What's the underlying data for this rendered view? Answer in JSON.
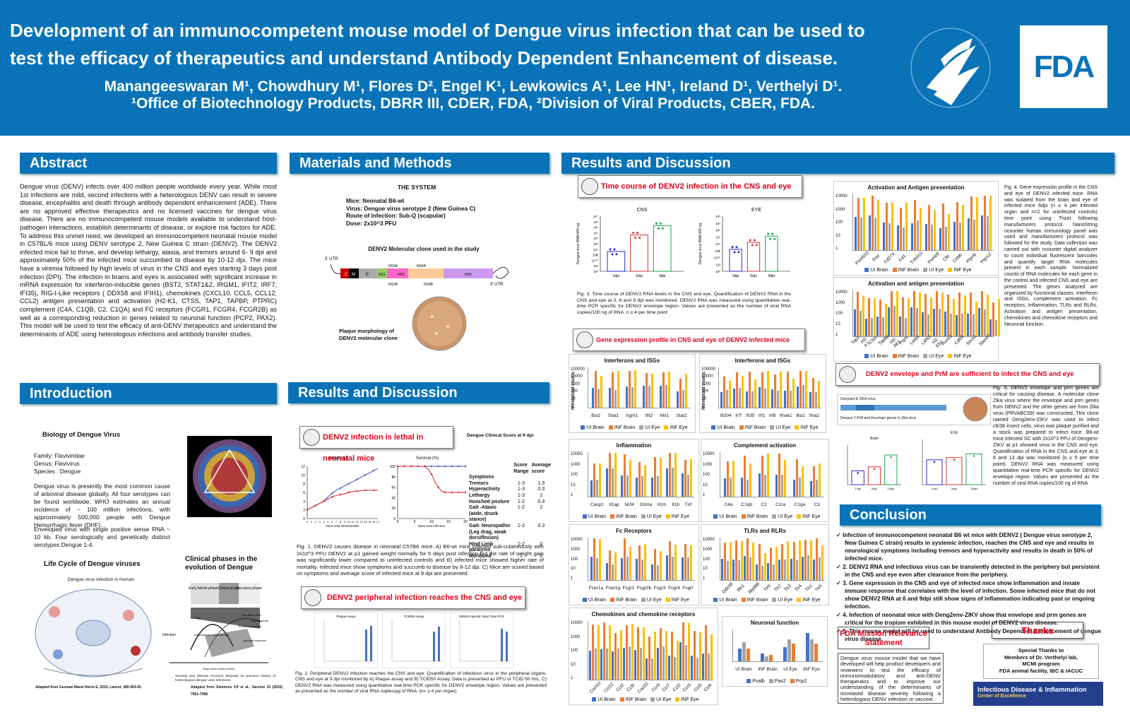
{
  "header": {
    "title": "Development of an immunocompetent mouse model of Dengue virus infection that can be used to test the efficacy of therapeutics and understand Antibody Dependent Enhancement of disease.",
    "authors": "Manangeeswaran M¹, Chowdhury M¹,  Flores D²,  Engel K¹,  Lewkowics A¹,  Lee HN¹,  Ireland D¹,  Verthelyi D¹.",
    "affiliations": "¹Office of Biotechnology Products, DBRR III, CDER, FDA, ²Division of Viral Products, CBER, FDA.",
    "hhs_seal": "DEPARTMENT OF HEALTH & HUMAN SERVICES•USA",
    "fda_logo": "FDA"
  },
  "abstract": {
    "heading": "Abstract",
    "text": "Dengue virus (DENV) infects over 400 million people worldwide every year. While most 1st infections are mild, second infections with a heterologous DENV can result in severe disease, encephalitis and death through antibody dependent enhancement (ADE).  There are no approved effective therapeutics and no licensed vaccines for dengue virus disease. There are no immunocompetent mouse models available to understand host-pathogen interactions, establish determinants of disease, or explore risk factors for ADE. To address this unmet need, we developed an immunocompetent neonatal mouse model in C57BL/6 mice using DENV serotype 2, New Guinea C strain (DENV2). The DENV2 infected mice fail to thrive, and develop lethargy, ataxia, and tremors around 6- 9 dpi and approximately 50% of the infected mice succumbed to disease by 10-12 dpi.  The mice have a viremia followed by high levels of virus in the CNS and eyes starting 3 days post infection (DPI).   The infection in brains and eyes is associated with significant increase in mRNA expression for interferon-inducible genes (BST2, STAT1&2, IRGM1, IFIT2, IRF7, IFI35), RIG-I-Like receptors ( DDX58 and IFIH1), chemokines (CXCL10, CCL5, CCL12, CCL2) antigen presentation and activation (H2-K1, CTSS, TAP1, TAPBP, PTPRC) complement (C4A, C1QB, C2, C1QA) and  FC receptors (FCGR1, FCGR4, FCGR2B) as well as a corresponding reduction in genes related to neuronal function (PCP2, PAX2). This model will be used to test the efficacy of anti-DENV therapeutics and understand the determinants of ADE using heterologous infections and antibody transfer studies."
  },
  "introduction": {
    "heading": "Introduction",
    "biology_title": "Biology of Dengue Virus",
    "family": "Family: Flaviviridae",
    "genus": "Genus: Flavivirus",
    "species": "Species : Dengue",
    "para1": "Dengue virus is presently the most common cause of arboviral disease globally. All four serotypes can be found worldwide. WHO estimates an annual incidence of ~ 100 million infections, with approximately 500,000 people with Dengue Hemorrhagic fever (DHF).",
    "para2": "Enveloped virus with single positive sense RNA ~ 10 kb. Four serologically and genetically distinct serotypes Dengue 1-4.",
    "lifecycle_title": "Life Cycle of Dengue viruses",
    "lifecycle_sub": "Dengue virus infection in Human",
    "lifecycle_credit": "Adapted from Guzman Maral Harris E, 2015, Lancet, 385:453-65",
    "phases_title": "Clinical phases in the evolution of Dengue",
    "phases_credit": "Adapted from Simmons CP et al., Vaccine 33 (2015) 7061-7068",
    "phase_labels": [
      "Early febrile phase",
      "Critical phase",
      "Recovery phase"
    ],
    "curve_labels": [
      "Circulating NS1",
      "CD8 response",
      "Thrombocytopenia",
      "Viremia",
      "Inflammatory host response",
      "IgG/IgM response"
    ],
    "severity_note": "Severity and ultimate recovery depends on previous history of heterologous dengue virus infections",
    "axis_label": "Days since onset of fever",
    "infection_label": "Infection"
  },
  "methods": {
    "heading": "Materials and Methods",
    "system_title": "THE SYSTEM",
    "mice": "Mice: Neonatal B6-wt",
    "virus": "Virus: Dengue virus serotype 2 (New Guinea C)",
    "route": "Route of infection: Sub-Q (scapular)",
    "dose": "Dose: 2x10^3 PFU",
    "clone_title": "DENV2 Molecular clone used in the study",
    "utr5": "5' UTR",
    "utr3": "3' UTR",
    "genes": [
      "C",
      "M",
      "E",
      "NS1",
      "NS2A",
      "NS3",
      "NS4A",
      "NS5"
    ],
    "genes_below": [
      "NS2B",
      "NS4B"
    ],
    "plaque_label": "Plaque morphology of DENV2 molecular clone"
  },
  "results_mid": {
    "heading": "Results and Discussion",
    "box1": "DENV2 infection is lethal in neonatal mice",
    "weight_title": "Weight (g)",
    "survival_title": "Survival (%)",
    "weight_xlabel": "Days post infection(dpi)",
    "survival_xlabel": "Days post infection",
    "weight_legend": [
      "Mock",
      "INF"
    ],
    "survival_legend": [
      "Mock (n=8)",
      "INF (n=23)"
    ],
    "score_title": "Dengue Clinical Score at 9 dpi",
    "score_header": [
      "",
      "Score Range",
      "Average score"
    ],
    "score_rows": [
      [
        "Symptoms",
        "",
        ""
      ],
      [
        "Tremors",
        "1-3",
        "1.3"
      ],
      [
        "Hyperactivity",
        "1-3",
        "0.3"
      ],
      [
        "Lethargy",
        "1-3",
        "2"
      ],
      [
        "Hunched posture",
        "1-2",
        "0.3"
      ],
      [
        "Gait -Ataxic (wide, drunk stance)",
        "1-2",
        "2"
      ],
      [
        "Gait- Neuropathic (Leg drag, weak dorsiflexion)",
        "1-2",
        "0.3"
      ],
      [
        "Hind Limb paralysis",
        "1-2",
        "0"
      ],
      [
        "Moribund",
        "1",
        "0"
      ]
    ],
    "fig1_caption": "Fig. 1. DENV2 causes disease in neonatal C57B6 mice. A) B6-wt mice infected sub-cutaneously with 2x10^3 PFU DENV2 at p1 gained weight normally for 5 days post infection but the rate of weight gain was significantly lower compared to uninfected controls and B) infected mice showed higher rate of mortality. Infected mice show symptoms and succumb to disease by 8-12 dpi. C) Mice are scored based on symptoms and average score of infected mice at 9 dpi are presented.",
    "box2": "DENV2 peripheral infection reaches the CNS and eye",
    "assay_titles": [
      "Plaque Assay",
      "TCID50 Assay",
      "DENV2 specific Real Time PCR"
    ],
    "fig2_caption": "Fig. 2. Peripheral DENV2 infection reaches the CNS and eye. Quantification of infectious virus in the peripheral organs, CNS and eye at 9 dpi  monitored by A) Plaque assay and B) TCID50 Assay. Data is presented as PFU or TCID 50 /mL. C) DENV2 RNA was measured using quantitative real-time PCR specific for DENV2 envelope region. Values are presented as presented as the number of viral RNA copies/μg of RNA. (n= ≥ 4 per organ)"
  },
  "results_right": {
    "heading": "Results and Discussion",
    "box3": "Time course of DENV2 infection in the CNS and eye",
    "cns_title": "CNS",
    "eye_title": "EYE",
    "timepoints": [
      "3dpi",
      "6dpi",
      "9dpi"
    ],
    "ylabel": "Dengue virus RNA/100 ng",
    "fig3_caption": "Fig. 3. Time course of DENV2 RNA levels in the CNS and eye.  Quantification of DENV2 RNA in the CNS and eye at  3, 6 and 9 dpi was monitored.  DENV2 RNA was measured using quantitative real-time PCR specific for DENV2 envelope region. Values are presented as the number of viral RNA copies/100 ng of RNA. n ≥ 4 per time point",
    "box4": "Gene expression profile in CNS and eye of DENV2 infected mice",
    "norm_label": "Normalized counts",
    "legend": [
      "UI Brain",
      "INF Brain",
      "UI Eye",
      "INF Eye"
    ],
    "panels": [
      {
        "title": "Interferons and ISGs",
        "genes": [
          "Bst2",
          "Stat1",
          "Irgm1",
          "Ifit2",
          "Mx1",
          "Stat2"
        ]
      },
      {
        "title": "Interferons and ISGs",
        "genes": [
          "Ifi204",
          "Irf7",
          "Ifi35",
          "Irf1",
          "Irf8",
          "Ifnak1",
          "Bst1",
          "Ifna2"
        ]
      },
      {
        "title": "Inflammation",
        "genes": [
          "Casp1",
          "Il1ap",
          "Ncf4",
          "Gzma",
          "Il1rn",
          "Il1b",
          "Tnf"
        ]
      },
      {
        "title": "Complement activation",
        "genes": [
          "C4a",
          "C1qb",
          "C2",
          "C1ra",
          "C1qa",
          "C3"
        ]
      },
      {
        "title": "Fc Receptors",
        "genes": [
          "Fcer1a",
          "Fcer1g",
          "Fcgr1",
          "Fcgr2b",
          "Fcgr3",
          "Fcgr4",
          "Fcgrt"
        ]
      },
      {
        "title": "TLRs and RLRs",
        "genes": [
          "Ddx58",
          "Ifih1",
          "Myd88",
          "Tlr9",
          "Tlr2",
          "Tlr3",
          "Tlr4",
          "Tlr1",
          "Tlr5"
        ]
      },
      {
        "title": "Chemokines and chemokine receptors",
        "genes": [
          "Cxcl10",
          "Ccl12",
          "Ccl2",
          "Ccl5",
          "Cxcl11",
          "Ccr9",
          "Ccl7",
          "Ccl2",
          "Ccr5",
          "Ccl3",
          "Ccl4"
        ]
      },
      {
        "title": "Activation and Antigen presentation",
        "genes": [
          "Psmb10",
          "Pml",
          "Cd274",
          "Cd1",
          "Tnfsf10",
          "Psmb9",
          "Cfb",
          "Cebb",
          "Ptpn6",
          "Ptprc2"
        ]
      },
      {
        "title": "Activation and antigen presentation",
        "genes": [
          "Tap1",
          "H2-K1",
          "Ctss",
          "Tapbp",
          "H2-Ab1",
          "Ptprc",
          "Lilrb4",
          "Lilrb3",
          "H2-Eb1",
          "Runx1",
          "Cd69",
          "Socs1",
          "Slamf7"
        ]
      }
    ],
    "neuronal_title": "Neuronal function",
    "neuronal_groups": [
      "UI Brain",
      "INF Brain",
      "UI Eye",
      "INF Eye"
    ],
    "neuronal_legend": [
      "Pvalb",
      "Pax2",
      "Pcp2"
    ],
    "y_ticks": [
      "100000",
      "10000",
      "1000",
      "100",
      "10",
      "1"
    ],
    "y_ticks_small": [
      "10000",
      "1000",
      "100",
      "10",
      "1"
    ],
    "fig4_caption": "Fig. 4. Gene expression profile in the CNS and eye of DENV2 infected mice. RNA was isolated from the brain and eye of infected mice 6dpi (n ≥ 4 per infected organ and n=2 for uninfected controls) time point using Trizol following manufacturers protocol. NanoString ncounter human immunology panel was used and manufacturers protocol was followed for the study. Data collection was carried out with ncounter digital analyzer to count individual fluorescent barcodes and quantify target RNA molecules present in each sample. Normalized counts of RNA molecules for each gene in the control and infected CNS and eye are presented. The genes analyzed are organized by functional classes. Interferon and ISGs, complement activation, Fc receptors, Inflammation, TLRs and RLRs, Activation and antigen presentation, chemokines and chemokine receptors and Neuronal function.",
    "box5": "DENV2 envelope and PrM are sufficient to infect the CNS and eye",
    "construct_title": "Dengue2-E ZIKA virus",
    "construct_label": "Dengue 2 PrM and Envelope genes in Zika virus",
    "brain_title": "Brain",
    "eye_title2": "EYE",
    "fig5_caption": "Fig. 5. DENV2 envelope and prm genes are critical for causing disease. A molecular clone Zika virus where the envelope and prm genes from DENV2 and the other genes are from Zika virus (PRVABC59) was constructed. This clone named Deng2env-ZIKV was used to infect c6/36 insect cells, virus was plaque purified and a stock was prepared to infect mice.  B6-wt mice infected SC with 2x10^3 PFU of Dengenv-ZIKV at p1 showed virus in the CNS and eye. Quantification of RNA in the CNS and eye at 3, 6 and 13 dpi was monitored (n ≥ 5 per time point). DENV2 RNA was measured using quantitative real-time PCR specific for DENV2 envelope region. Values are presented as the number of viral RNA copies/100 ng of RNA"
  },
  "conclusion": {
    "heading": "Conclusion",
    "items": [
      "Infection of immunocompetent neonatal B6 wt mice with DENV2 ( Dengue virus serotype 2, New Guinea C strain) results in systemic infection, reaches the CNS and eye and results in neurological symptoms including tremors and hyperactivity and results in death in 50% of infected mice.",
      "2.  DENV2 RNA and infectious virus can be transiently detected in the periphery but persistent in the CNS and eye even after clearance from the periphery.",
      "3.   Gene expression in the CNS and eye of infected mice show inflammation and innate immune response that correlates with the level of infection. Some infected mice that do not show DENV2 RNA at 6 and 9dpi still show signs of inflammation indicating past or ongoing infection.",
      "4.   Infection of neonatal mice with Deng2env-ZIKV show that envelope and prm genes are critical for the tropism exhibited in this mouse model of DENV2 virus disease.",
      "5. This mouse model will be used to understand Antibody Dependent Enhancement of dengue virus disease."
    ]
  },
  "mission": {
    "title": "FDA Mission Relevance Statement",
    "text": "Dengue virus mouse model that we have developed will help product developers and reviewers to test the efficacy of immunomodulatory and anti-DENV therapeutics and to improve our understanding of the determinants of increased disease severity following a heterologous DENV infection or vaccine."
  },
  "thanks": {
    "title": "Thanks",
    "lines": [
      "Special Thanks to",
      "Members of Dr. Verthelyi lab,",
      "MCMi program",
      "FDA animal facility, IBC & IACUC"
    ],
    "banner": "Infectious Disease & Inflammation",
    "banner_sub": "Center of Excellence"
  },
  "colors": {
    "blue": "#0a73b8",
    "red": "#e0001a",
    "s1": "#4472c4",
    "s2": "#ed7d31",
    "s3": "#a5a5a5",
    "s4": "#ffc000"
  }
}
